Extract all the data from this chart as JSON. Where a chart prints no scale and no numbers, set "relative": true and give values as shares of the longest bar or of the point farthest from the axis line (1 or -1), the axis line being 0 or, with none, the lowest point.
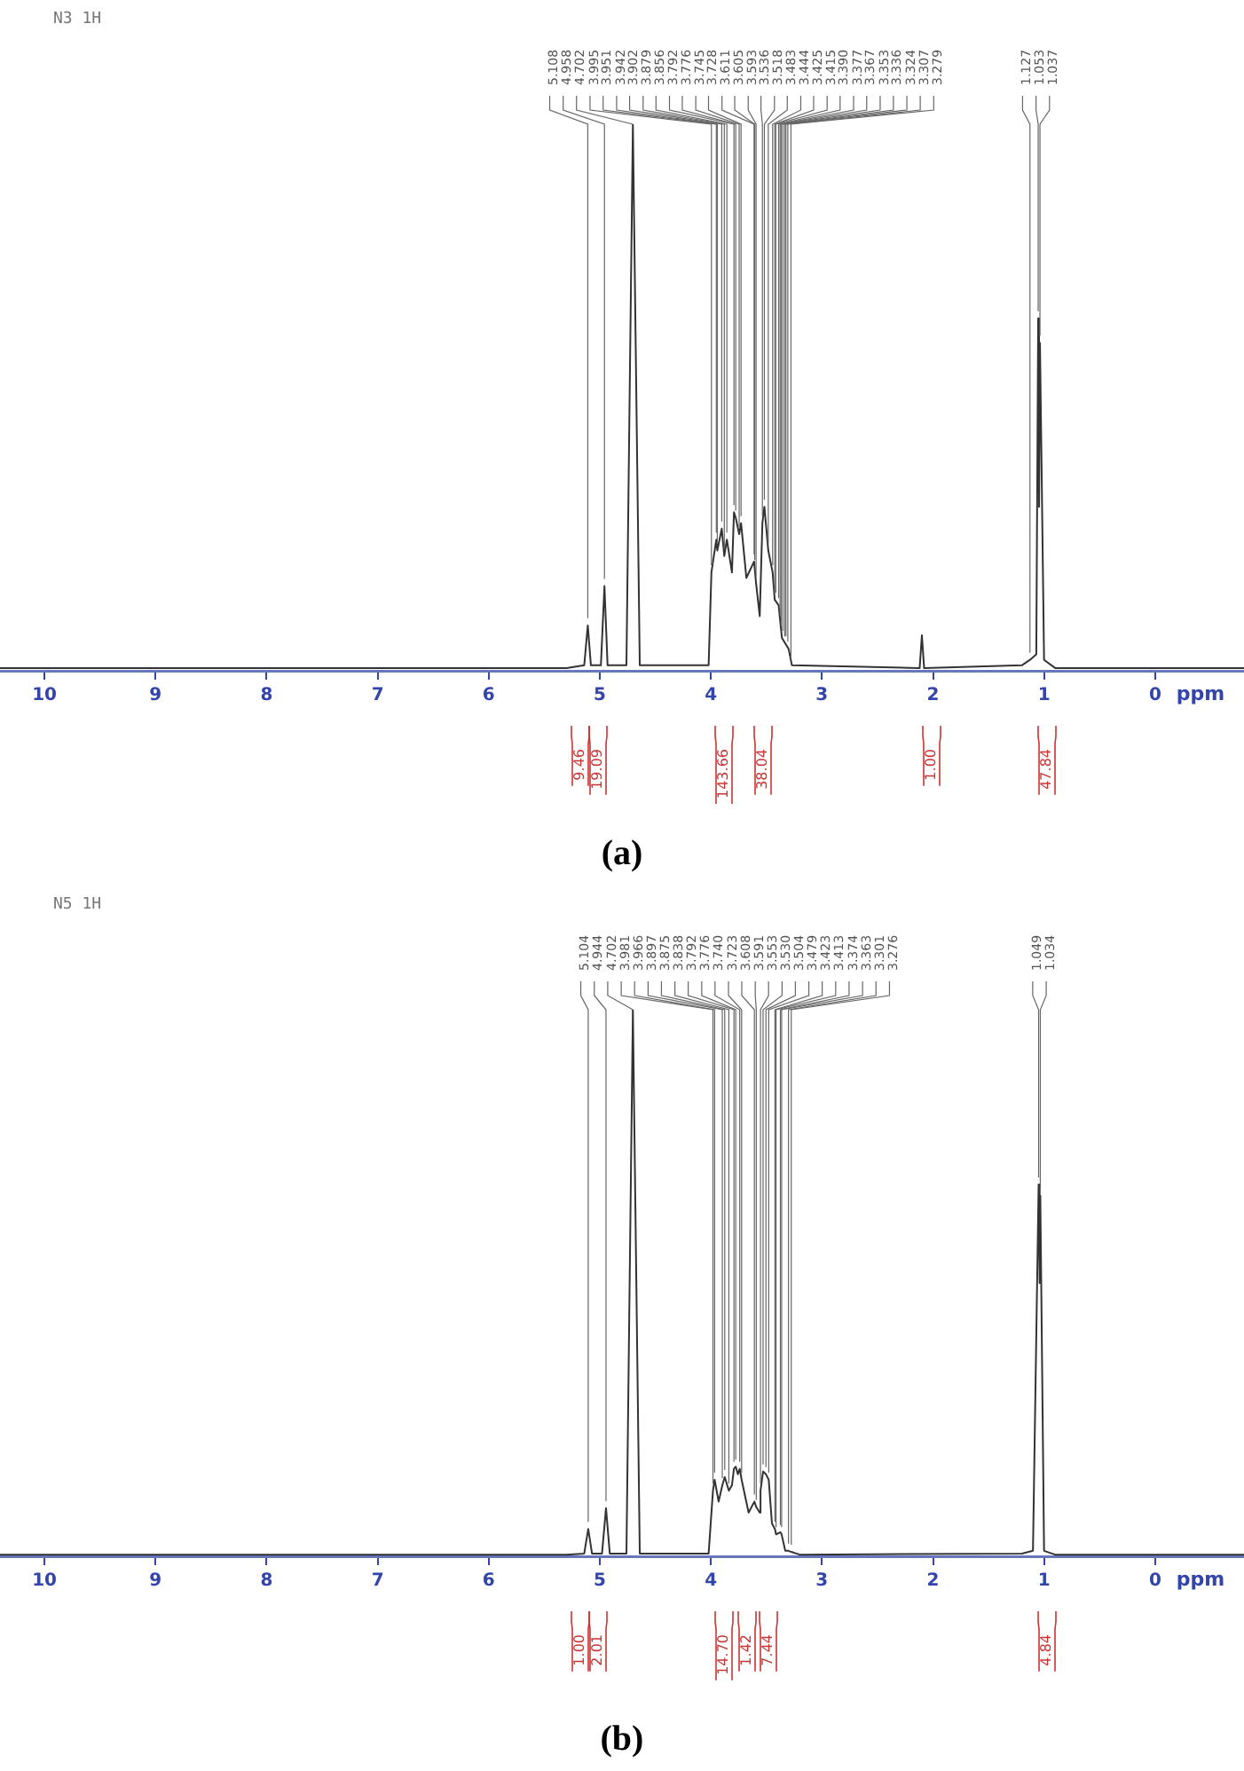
{
  "chart_data": [
    {
      "type": "line",
      "title": "N3 1H",
      "xlabel": "ppm",
      "relative": true,
      "xlim": [
        10.4,
        -0.8
      ],
      "xticks": [
        10,
        9,
        8,
        7,
        6,
        5,
        4,
        3,
        2,
        1,
        0
      ],
      "grid": false,
      "legend": false,
      "marker": "none",
      "series": [
        {
          "color": "#333333",
          "x": [
            10.4,
            5.3,
            5.14,
            5.108,
            5.08,
            4.99,
            4.958,
            4.93,
            4.76,
            4.702,
            4.64,
            4.02,
            3.995,
            3.951,
            3.942,
            3.902,
            3.879,
            3.856,
            3.81,
            3.792,
            3.776,
            3.745,
            3.728,
            3.68,
            3.611,
            3.593,
            3.56,
            3.536,
            3.518,
            3.483,
            3.444,
            3.425,
            3.39,
            3.36,
            3.3,
            3.27,
            2.12,
            2.1,
            2.08,
            1.2,
            1.127,
            1.07,
            1.053,
            1.045,
            1.037,
            1.0,
            0.9,
            -0.8
          ],
          "values": [
            0.005,
            0.005,
            0.01,
            0.083,
            0.01,
            0.01,
            0.155,
            0.01,
            0.01,
            1.0,
            0.01,
            0.01,
            0.18,
            0.24,
            0.22,
            0.26,
            0.21,
            0.24,
            0.18,
            0.29,
            0.28,
            0.25,
            0.27,
            0.17,
            0.2,
            0.16,
            0.1,
            0.27,
            0.3,
            0.22,
            0.18,
            0.13,
            0.12,
            0.06,
            0.04,
            0.01,
            0.005,
            0.065,
            0.005,
            0.01,
            0.02,
            0.03,
            0.645,
            0.3,
            0.6,
            0.02,
            0.005,
            0.005
          ]
        }
      ],
      "annotations": [
        "(a)",
        {
          "text": "5.108",
          "x": 5.108,
          "y": 0.083
        },
        {
          "text": "4.958",
          "x": 4.958,
          "y": 0.155
        },
        {
          "text": "4.702",
          "x": 4.702,
          "y": 1.0
        },
        {
          "text": "3.995",
          "x": 3.995,
          "y": 0.18
        },
        {
          "text": "3.951",
          "x": 3.951,
          "y": 0.24
        },
        {
          "text": "3.942",
          "x": 3.942,
          "y": 0.22
        },
        {
          "text": "3.902",
          "x": 3.902,
          "y": 0.26
        },
        {
          "text": "3.879",
          "x": 3.879,
          "y": 0.21
        },
        {
          "text": "3.856",
          "x": 3.856,
          "y": 0.24
        },
        {
          "text": "3.792",
          "x": 3.792,
          "y": 0.29
        },
        {
          "text": "3.776",
          "x": 3.776,
          "y": 0.28
        },
        {
          "text": "3.745",
          "x": 3.745,
          "y": 0.25
        },
        {
          "text": "3.728",
          "x": 3.728,
          "y": 0.27
        },
        {
          "text": "3.611",
          "x": 3.611,
          "y": 0.2
        },
        {
          "text": "3.605",
          "x": 3.605,
          "y": 0.19
        },
        {
          "text": "3.593",
          "x": 3.593,
          "y": 0.16
        },
        {
          "text": "3.536",
          "x": 3.536,
          "y": 0.27
        },
        {
          "text": "3.518",
          "x": 3.518,
          "y": 0.3
        },
        {
          "text": "3.483",
          "x": 3.483,
          "y": 0.22
        },
        {
          "text": "3.444",
          "x": 3.444,
          "y": 0.18
        },
        {
          "text": "3.425",
          "x": 3.425,
          "y": 0.13
        },
        {
          "text": "3.415",
          "x": 3.415,
          "y": 0.13
        },
        {
          "text": "3.390",
          "x": 3.39,
          "y": 0.12
        },
        {
          "text": "3.377",
          "x": 3.377,
          "y": 0.09
        },
        {
          "text": "3.367",
          "x": 3.367,
          "y": 0.07
        },
        {
          "text": "3.353",
          "x": 3.353,
          "y": 0.06
        },
        {
          "text": "3.336",
          "x": 3.336,
          "y": 0.05
        },
        {
          "text": "3.324",
          "x": 3.324,
          "y": 0.05
        },
        {
          "text": "3.307",
          "x": 3.307,
          "y": 0.04
        },
        {
          "text": "3.279",
          "x": 3.279,
          "y": 0.01
        },
        {
          "text": "1.127",
          "x": 1.127,
          "y": 0.02
        },
        {
          "text": "1.053",
          "x": 1.053,
          "y": 0.645
        },
        {
          "text": "1.037",
          "x": 1.037,
          "y": 0.6
        },
        "9.46",
        "19.09",
        "143.66",
        "38.04",
        "1.00",
        "47.84"
      ]
    },
    {
      "type": "line",
      "title": "N5 1H",
      "xlabel": "ppm",
      "relative": true,
      "xlim": [
        10.4,
        -0.8
      ],
      "xticks": [
        10,
        9,
        8,
        7,
        6,
        5,
        4,
        3,
        2,
        1,
        0
      ],
      "grid": false,
      "legend": false,
      "marker": "none",
      "series": [
        {
          "color": "#333333",
          "x": [
            10.4,
            5.3,
            5.14,
            5.104,
            5.07,
            4.98,
            4.944,
            4.91,
            4.76,
            4.702,
            4.64,
            4.02,
            3.981,
            3.966,
            3.93,
            3.897,
            3.875,
            3.838,
            3.81,
            3.792,
            3.776,
            3.757,
            3.74,
            3.723,
            3.66,
            3.608,
            3.591,
            3.56,
            3.553,
            3.53,
            3.504,
            3.479,
            3.45,
            3.423,
            3.413,
            3.374,
            3.363,
            3.33,
            3.301,
            3.276,
            3.2,
            1.2,
            1.1,
            1.049,
            1.04,
            1.034,
            1.0,
            0.9,
            -0.8
          ],
          "values": [
            0.003,
            0.003,
            0.005,
            0.05,
            0.005,
            0.005,
            0.088,
            0.005,
            0.005,
            1.0,
            0.005,
            0.005,
            0.12,
            0.14,
            0.1,
            0.13,
            0.145,
            0.12,
            0.13,
            0.16,
            0.164,
            0.15,
            0.16,
            0.14,
            0.08,
            0.1,
            0.09,
            0.08,
            0.12,
            0.155,
            0.15,
            0.14,
            0.06,
            0.05,
            0.04,
            0.044,
            0.04,
            0.01,
            0.01,
            0.008,
            0.003,
            0.005,
            0.01,
            0.68,
            0.5,
            0.66,
            0.01,
            0.003,
            0.003
          ]
        }
      ],
      "annotations": [
        "(b)",
        {
          "text": "5.104",
          "x": 5.104,
          "y": 0.05
        },
        {
          "text": "4.944",
          "x": 4.944,
          "y": 0.088
        },
        {
          "text": "4.702",
          "x": 4.702,
          "y": 1.0
        },
        {
          "text": "3.981",
          "x": 3.981,
          "y": 0.12
        },
        {
          "text": "3.966",
          "x": 3.966,
          "y": 0.14
        },
        {
          "text": "3.897",
          "x": 3.897,
          "y": 0.13
        },
        {
          "text": "3.875",
          "x": 3.875,
          "y": 0.145
        },
        {
          "text": "3.838",
          "x": 3.838,
          "y": 0.12
        },
        {
          "text": "3.792",
          "x": 3.792,
          "y": 0.16
        },
        {
          "text": "3.776",
          "x": 3.776,
          "y": 0.164
        },
        {
          "text": "3.740",
          "x": 3.74,
          "y": 0.16
        },
        {
          "text": "3.723",
          "x": 3.723,
          "y": 0.14
        },
        {
          "text": "3.608",
          "x": 3.608,
          "y": 0.1
        },
        {
          "text": "3.591",
          "x": 3.591,
          "y": 0.09
        },
        {
          "text": "3.553",
          "x": 3.553,
          "y": 0.12
        },
        {
          "text": "3.530",
          "x": 3.53,
          "y": 0.155
        },
        {
          "text": "3.504",
          "x": 3.504,
          "y": 0.15
        },
        {
          "text": "3.479",
          "x": 3.479,
          "y": 0.14
        },
        {
          "text": "3.423",
          "x": 3.423,
          "y": 0.05
        },
        {
          "text": "3.413",
          "x": 3.413,
          "y": 0.04
        },
        {
          "text": "3.374",
          "x": 3.374,
          "y": 0.044
        },
        {
          "text": "3.363",
          "x": 3.363,
          "y": 0.04
        },
        {
          "text": "3.301",
          "x": 3.301,
          "y": 0.01
        },
        {
          "text": "3.276",
          "x": 3.276,
          "y": 0.008
        },
        {
          "text": "1.049",
          "x": 1.049,
          "y": 0.68
        },
        {
          "text": "1.034",
          "x": 1.034,
          "y": 0.66
        },
        "1.00",
        "2.01",
        "14.70",
        "1.42",
        "7.44",
        "4.84"
      ]
    }
  ]
}
